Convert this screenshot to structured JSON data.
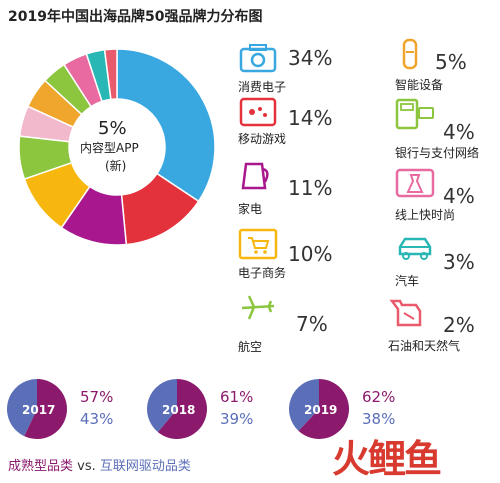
{
  "title": "2019年中国出海品牌50强品牌力分布图",
  "chart_data": {
    "type": "pie",
    "title": "2019年中国出海品牌50强品牌力分布图",
    "slices": [
      {
        "label": "消费电子",
        "value": 34,
        "display": "34%",
        "color": "#39a8e0",
        "icon": "camera-icon"
      },
      {
        "label": "移动游戏",
        "value": 14,
        "display": "14%",
        "color": "#e4323c",
        "icon": "game-phone-icon"
      },
      {
        "label": "家电",
        "value": 11,
        "display": "11%",
        "color": "#a8178d",
        "icon": "kettle-icon"
      },
      {
        "label": "电子商务",
        "value": 10,
        "display": "10%",
        "color": "#f7b70e",
        "icon": "shopping-cart-icon"
      },
      {
        "label": "航空",
        "value": 7,
        "display": "7%",
        "color": "#8cc63e",
        "icon": "airplane-icon"
      },
      {
        "label": "内容型APP",
        "value": 5,
        "display": "5%",
        "color": "#f2b8cc",
        "icon": "content-app"
      },
      {
        "label": "智能设备",
        "value": 5,
        "display": "5%",
        "color": "#f0a52c",
        "icon": "smart-speaker-icon"
      },
      {
        "label": "银行与支付网络",
        "value": 4,
        "display": "4%",
        "color": "#8cc63e",
        "icon": "pos-terminal-icon"
      },
      {
        "label": "线上快时尚",
        "value": 4,
        "display": "4%",
        "color": "#e86aa0",
        "icon": "dress-icon"
      },
      {
        "label": "汽车",
        "value": 3,
        "display": "3%",
        "color": "#28b7b5",
        "icon": "car-icon"
      },
      {
        "label": "石油和天然气",
        "value": 2,
        "display": "2%",
        "color": "#e85a6c",
        "icon": "fuel-can-icon"
      }
    ],
    "center": {
      "pct": "5%",
      "name": "内容型APP",
      "note": "(新)"
    },
    "years": [
      {
        "year": "2017",
        "mature": 57,
        "internet": 43,
        "mature_label": "57%",
        "internet_label": "43%"
      },
      {
        "year": "2018",
        "mature": 61,
        "internet": 39,
        "mature_label": "61%",
        "internet_label": "39%"
      },
      {
        "year": "2019",
        "mature": 62,
        "internet": 38,
        "mature_label": "62%",
        "internet_label": "38%"
      }
    ],
    "legend": {
      "mature": "成熟型品类",
      "vs": "vs.",
      "internet": "互联网驱动品类"
    },
    "colors": {
      "mature": "#8b1a6d",
      "internet": "#5b6fb8"
    }
  },
  "brand": "火鲤鱼"
}
